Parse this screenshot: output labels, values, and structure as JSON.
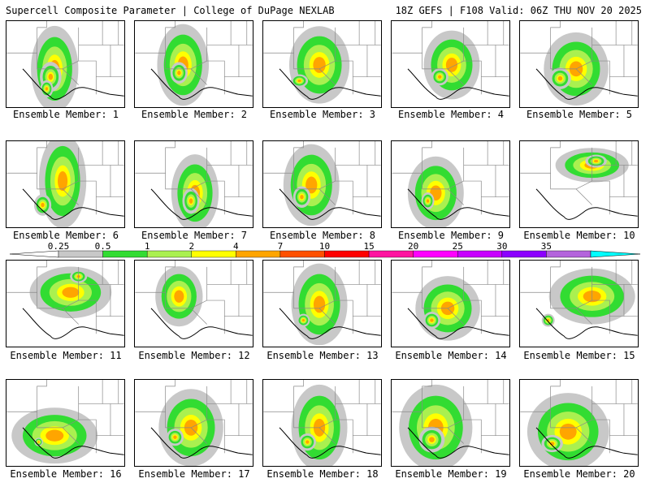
{
  "header": {
    "left": "Supercell Composite Parameter | College of DuPage NEXLAB",
    "right": "18Z GEFS | F108 Valid: 06Z THU NOV 20 2025"
  },
  "panels": [
    {
      "label": "Ensemble Member: 1"
    },
    {
      "label": "Ensemble Member: 2"
    },
    {
      "label": "Ensemble Member: 3"
    },
    {
      "label": "Ensemble Member: 4"
    },
    {
      "label": "Ensemble Member: 5"
    },
    {
      "label": "Ensemble Member: 6"
    },
    {
      "label": "Ensemble Member: 7"
    },
    {
      "label": "Ensemble Member: 8"
    },
    {
      "label": "Ensemble Member: 9"
    },
    {
      "label": "Ensemble Member: 10"
    },
    {
      "label": "Ensemble Member: 11"
    },
    {
      "label": "Ensemble Member: 12"
    },
    {
      "label": "Ensemble Member: 13"
    },
    {
      "label": "Ensemble Member: 14"
    },
    {
      "label": "Ensemble Member: 15"
    },
    {
      "label": "Ensemble Member: 16"
    },
    {
      "label": "Ensemble Member: 17"
    },
    {
      "label": "Ensemble Member: 18"
    },
    {
      "label": "Ensemble Member: 19"
    },
    {
      "label": "Ensemble Member: 20"
    }
  ],
  "colorbar": {
    "levels": [
      "0.25",
      "0.5",
      "1",
      "2",
      "4",
      "7",
      "10",
      "15",
      "20",
      "25",
      "30",
      "35"
    ],
    "colors": [
      "#c8c8c8",
      "#32dc32",
      "#aaf050",
      "#ffff00",
      "#ffa500",
      "#ff5000",
      "#ff0000",
      "#ff14a0",
      "#ff00ff",
      "#c800ff",
      "#8c00ff",
      "#b464dc",
      "#00ffff"
    ]
  }
}
